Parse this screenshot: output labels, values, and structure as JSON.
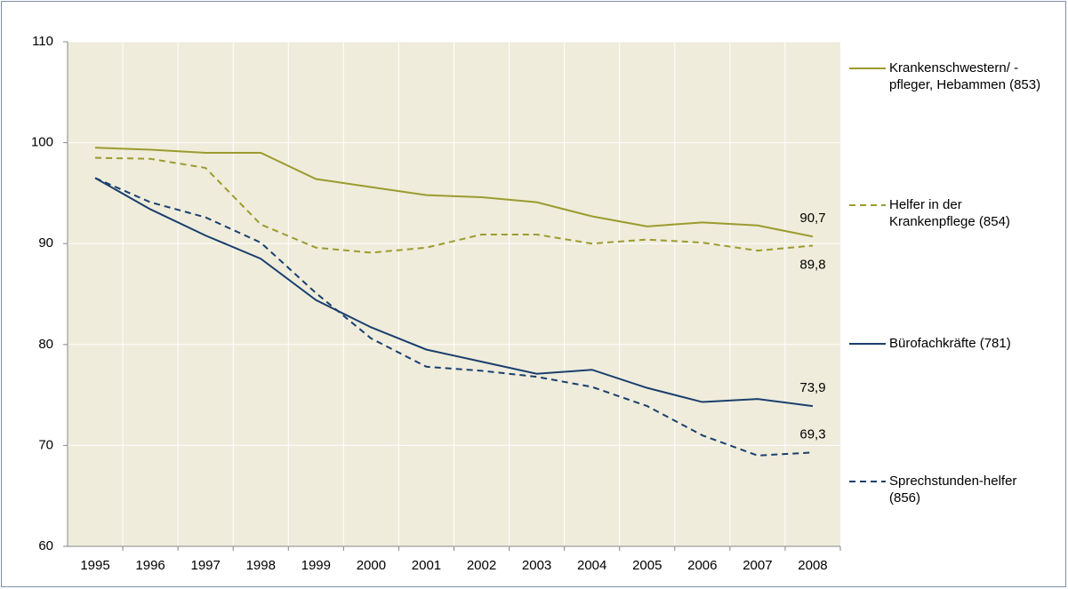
{
  "chart_data": {
    "type": "line",
    "categories": [
      "1995",
      "1996",
      "1997",
      "1998",
      "1999",
      "2000",
      "2001",
      "2002",
      "2003",
      "2004",
      "2005",
      "2006",
      "2007",
      "2008"
    ],
    "ylim": [
      60,
      110
    ],
    "yticks": [
      60,
      70,
      80,
      90,
      100,
      110
    ],
    "grid": true,
    "series": [
      {
        "name": "Krankenschwestern/ -pfleger, Hebammen (853)",
        "color": "#9c9b2e",
        "dash": false,
        "values": [
          99.5,
          99.3,
          99.0,
          99.0,
          96.4,
          95.6,
          94.8,
          94.6,
          94.1,
          92.7,
          91.7,
          92.1,
          91.8,
          90.7
        ],
        "value_labels": [
          null,
          null,
          null,
          null,
          null,
          null,
          null,
          null,
          null,
          null,
          null,
          null,
          null,
          "90,7"
        ]
      },
      {
        "name": "Helfer in der Krankenpflege (854)",
        "color": "#9c9b2e",
        "dash": true,
        "values": [
          98.5,
          98.4,
          97.5,
          91.9,
          89.6,
          89.1,
          89.6,
          90.9,
          90.9,
          90.0,
          90.4,
          90.1,
          89.3,
          89.8
        ],
        "value_labels": [
          null,
          null,
          null,
          null,
          null,
          null,
          null,
          null,
          null,
          null,
          null,
          null,
          null,
          "89,8"
        ]
      },
      {
        "name": "Bürofachkräfte (781)",
        "color": "#1a3f6e",
        "dash": false,
        "values": [
          96.5,
          93.4,
          90.8,
          88.5,
          84.4,
          81.7,
          79.5,
          78.3,
          77.1,
          77.5,
          75.7,
          74.3,
          74.6,
          73.9
        ],
        "value_labels": [
          null,
          null,
          null,
          null,
          null,
          null,
          null,
          null,
          null,
          null,
          null,
          null,
          null,
          "73,9"
        ]
      },
      {
        "name": "Sprechstunden-helfer (856)",
        "color": "#1a3f6e",
        "dash": true,
        "values": [
          96.5,
          94.1,
          92.6,
          90.1,
          85.1,
          80.6,
          77.8,
          77.4,
          76.8,
          75.8,
          73.9,
          71.0,
          69.0,
          69.3
        ],
        "value_labels": [
          null,
          null,
          null,
          null,
          null,
          null,
          null,
          null,
          null,
          null,
          null,
          null,
          null,
          "69,3"
        ]
      }
    ]
  }
}
